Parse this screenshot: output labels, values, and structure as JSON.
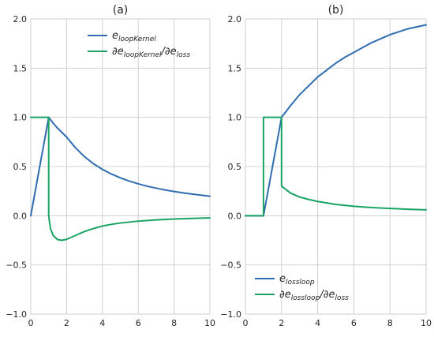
{
  "chart_data": [
    {
      "id": "a",
      "type": "line",
      "title": "(a)",
      "xlim": [
        0,
        10
      ],
      "ylim": [
        -1.0,
        2.0
      ],
      "xticks": [
        "0",
        "2",
        "4",
        "6",
        "8",
        "10"
      ],
      "yticks": [
        "−1.0",
        "−0.5",
        "0.0",
        "0.5",
        "1.0",
        "1.5",
        "2.0"
      ],
      "grid": true,
      "legend_position": "top-right",
      "series": [
        {
          "label_main": "e",
          "label_sub": "loopKernel",
          "color": "#2f6db0",
          "x": [
            0,
            1,
            1.25,
            1.5,
            2,
            2.5,
            3,
            3.5,
            4,
            4.5,
            5,
            5.5,
            6,
            6.5,
            7,
            7.5,
            8,
            8.5,
            9,
            9.5,
            10
          ],
          "y": [
            0,
            1,
            0.941,
            0.889,
            0.8,
            0.69,
            0.6,
            0.528,
            0.471,
            0.424,
            0.385,
            0.352,
            0.324,
            0.3,
            0.28,
            0.262,
            0.246,
            0.232,
            0.22,
            0.209,
            0.198
          ]
        },
        {
          "label_main": "∂e",
          "label_sub": "loopKernel",
          "label_mid": "/∂e",
          "label_sub2": "loss",
          "color": "#19a463",
          "x": [
            0,
            1,
            1,
            1.1,
            1.25,
            1.5,
            1.75,
            2,
            2.5,
            3,
            3.5,
            4,
            4.5,
            5,
            6,
            7,
            8,
            9,
            10
          ],
          "y": [
            1,
            1,
            0,
            -0.13,
            -0.2,
            -0.243,
            -0.25,
            -0.24,
            -0.2,
            -0.16,
            -0.13,
            -0.105,
            -0.088,
            -0.074,
            -0.055,
            -0.042,
            -0.033,
            -0.027,
            -0.022
          ]
        }
      ]
    },
    {
      "id": "b",
      "type": "line",
      "title": "(b)",
      "xlim": [
        0,
        10
      ],
      "ylim": [
        -1.0,
        2.0
      ],
      "xticks": [
        "0",
        "2",
        "4",
        "6",
        "8",
        "10"
      ],
      "yticks": [
        "−1.0",
        "−0.5",
        "0.0",
        "0.5",
        "1.0",
        "1.5",
        "2.0"
      ],
      "grid": true,
      "legend_position": "bottom-left",
      "series": [
        {
          "label_main": "e",
          "label_sub": "lossloop",
          "color": "#2f6db0",
          "x": [
            0,
            1,
            2,
            2.5,
            3,
            3.5,
            4,
            4.5,
            5,
            5.5,
            6,
            6.5,
            7,
            7.5,
            8,
            8.5,
            9,
            9.5,
            10
          ],
          "y": [
            0,
            0,
            1,
            1.12,
            1.23,
            1.32,
            1.41,
            1.48,
            1.55,
            1.61,
            1.66,
            1.71,
            1.76,
            1.8,
            1.84,
            1.87,
            1.9,
            1.92,
            1.94
          ]
        },
        {
          "label_main": "∂e",
          "label_sub": "lossloop",
          "label_mid": "/∂e",
          "label_sub2": "loss",
          "color": "#19a463",
          "x": [
            0,
            1,
            1,
            2,
            2,
            2.5,
            3,
            3.5,
            4,
            4.5,
            5,
            6,
            7,
            8,
            9,
            10
          ],
          "y": [
            0,
            0,
            1,
            1,
            0.3,
            0.23,
            0.19,
            0.165,
            0.145,
            0.13,
            0.115,
            0.096,
            0.083,
            0.074,
            0.066,
            0.06
          ]
        }
      ]
    }
  ]
}
